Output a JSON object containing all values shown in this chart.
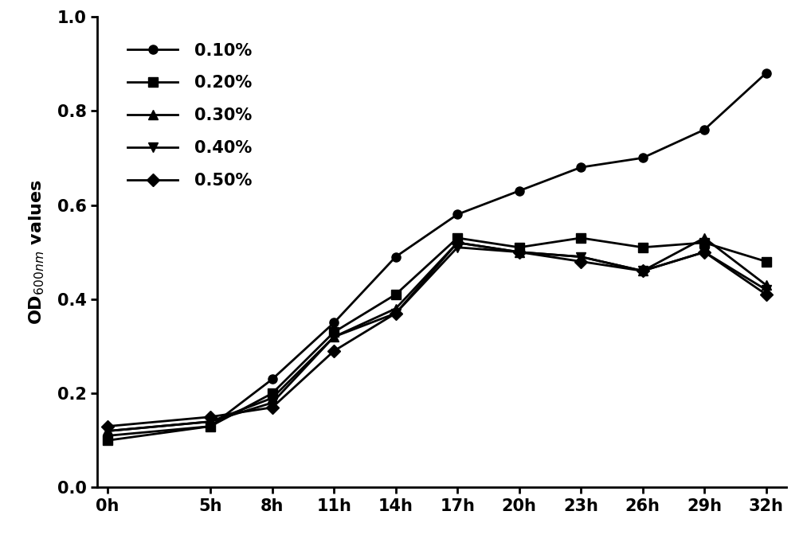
{
  "x_labels": [
    "0h",
    "5h",
    "8h",
    "11h",
    "14h",
    "17h",
    "20h",
    "23h",
    "26h",
    "29h",
    "32h"
  ],
  "x_values": [
    0,
    5,
    8,
    11,
    14,
    17,
    20,
    23,
    26,
    29,
    32
  ],
  "series": [
    {
      "label": "0.10%",
      "marker": "o",
      "values": [
        0.11,
        0.13,
        0.23,
        0.35,
        0.49,
        0.58,
        0.63,
        0.68,
        0.7,
        0.76,
        0.88
      ]
    },
    {
      "label": "0.20%",
      "marker": "s",
      "values": [
        0.1,
        0.13,
        0.2,
        0.33,
        0.41,
        0.53,
        0.51,
        0.53,
        0.51,
        0.52,
        0.48
      ]
    },
    {
      "label": "0.30%",
      "marker": "^",
      "values": [
        0.12,
        0.14,
        0.19,
        0.32,
        0.38,
        0.52,
        0.5,
        0.49,
        0.46,
        0.53,
        0.43
      ]
    },
    {
      "label": "0.40%",
      "marker": "v",
      "values": [
        0.12,
        0.14,
        0.18,
        0.32,
        0.37,
        0.51,
        0.5,
        0.49,
        0.46,
        0.5,
        0.42
      ]
    },
    {
      "label": "0.50%",
      "marker": "D",
      "values": [
        0.13,
        0.15,
        0.17,
        0.29,
        0.37,
        0.52,
        0.5,
        0.48,
        0.46,
        0.5,
        0.41
      ]
    }
  ],
  "ylabel": "OD$_{600nm}$ values",
  "ylim": [
    0.0,
    1.0
  ],
  "yticks": [
    0.0,
    0.2,
    0.4,
    0.6,
    0.8,
    1.0
  ],
  "color": "#000000",
  "linewidth": 2.0,
  "markersize": 8,
  "legend_loc": "upper left",
  "background_color": "#ffffff",
  "figsize": [
    10.18,
    6.96
  ],
  "dpi": 100
}
